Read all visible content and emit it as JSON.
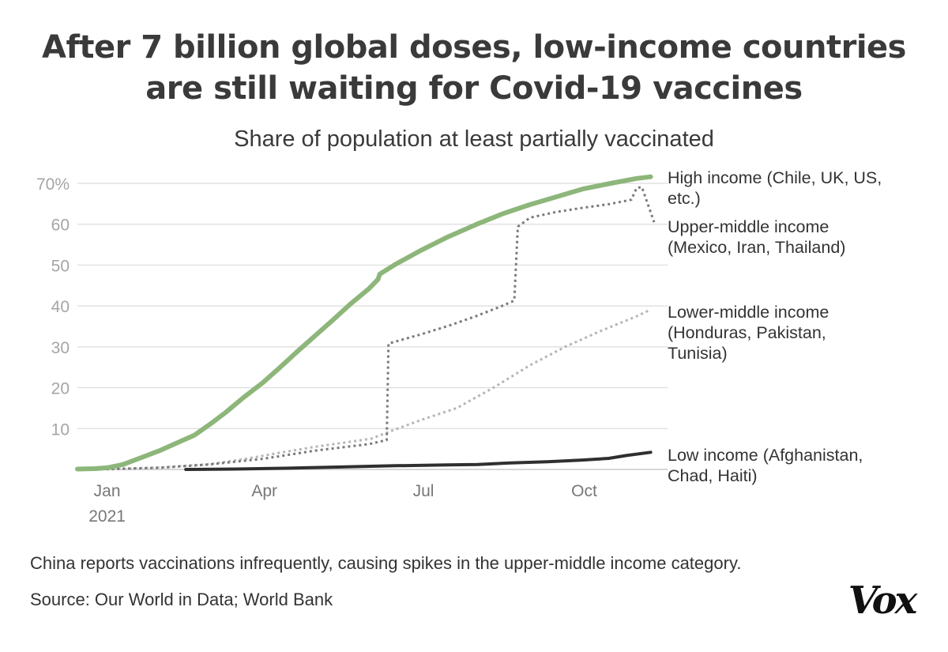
{
  "header": {
    "title_line1": "After 7 billion global doses, low-income countries",
    "title_line2": "are still waiting for Covid-19 vaccines",
    "subtitle": "Share of population at least partially vaccinated"
  },
  "footer": {
    "note": "China reports vaccinations infrequently, causing spikes in the upper-middle income category.",
    "source": "Source: Our World in Data; World Bank",
    "logo": "Vox"
  },
  "chart_data": {
    "type": "line",
    "title": "Share of population at least partially vaccinated",
    "xlabel": "",
    "ylabel": "",
    "x_range": [
      "2020-12-15",
      "2021-11-10"
    ],
    "ylim": [
      0,
      70
    ],
    "y_ticks": [
      {
        "value": 10,
        "label": "10"
      },
      {
        "value": 20,
        "label": "20"
      },
      {
        "value": 30,
        "label": "30"
      },
      {
        "value": 40,
        "label": "40"
      },
      {
        "value": 50,
        "label": "50"
      },
      {
        "value": 60,
        "label": "60"
      },
      {
        "value": 70,
        "label": "70%"
      }
    ],
    "x_ticks": [
      {
        "date": "2021-01-01",
        "label": "Jan",
        "sublabel": "2021"
      },
      {
        "date": "2021-04-01",
        "label": "Apr",
        "sublabel": ""
      },
      {
        "date": "2021-07-01",
        "label": "Jul",
        "sublabel": ""
      },
      {
        "date": "2021-10-01",
        "label": "Oct",
        "sublabel": ""
      }
    ],
    "grid": true,
    "legend": "direct labels at right end of lines",
    "series": [
      {
        "name": "High income (Chile, UK, US, etc.)",
        "label_lines": [
          "High income (Chile, UK, US,",
          "etc.)"
        ],
        "color": "#8db67a",
        "style": "solid",
        "points": [
          [
            "2020-12-15",
            0.1
          ],
          [
            "2020-12-25",
            0.2
          ],
          [
            "2021-01-01",
            0.4
          ],
          [
            "2021-01-10",
            1.2
          ],
          [
            "2021-01-20",
            2.8
          ],
          [
            "2021-01-31",
            4.6
          ],
          [
            "2021-02-10",
            6.5
          ],
          [
            "2021-02-20",
            8.4
          ],
          [
            "2021-03-01",
            11.1
          ],
          [
            "2021-03-10",
            14.0
          ],
          [
            "2021-03-20",
            17.6
          ],
          [
            "2021-03-31",
            21.2
          ],
          [
            "2021-04-10",
            25.0
          ],
          [
            "2021-04-20",
            28.9
          ],
          [
            "2021-04-30",
            32.7
          ],
          [
            "2021-05-10",
            36.5
          ],
          [
            "2021-05-20",
            40.4
          ],
          [
            "2021-05-31",
            44.3
          ],
          [
            "2021-06-05",
            46.5
          ],
          [
            "2021-06-06",
            47.8
          ],
          [
            "2021-06-15",
            50.2
          ],
          [
            "2021-06-30",
            53.7
          ],
          [
            "2021-07-15",
            56.9
          ],
          [
            "2021-07-31",
            59.9
          ],
          [
            "2021-08-15",
            62.5
          ],
          [
            "2021-08-31",
            64.8
          ],
          [
            "2021-09-15",
            66.7
          ],
          [
            "2021-09-30",
            68.6
          ],
          [
            "2021-10-15",
            69.9
          ],
          [
            "2021-10-31",
            71.2
          ],
          [
            "2021-11-08",
            71.6
          ]
        ]
      },
      {
        "name": "Upper-middle income (Mexico, Iran, Thailand)",
        "label_lines": [
          "Upper-middle income",
          "(Mexico, Iran, Thailand)"
        ],
        "color": "#7a7a7a",
        "style": "dotted",
        "points": [
          [
            "2020-12-25",
            0.0
          ],
          [
            "2021-01-31",
            0.4
          ],
          [
            "2021-02-28",
            1.2
          ],
          [
            "2021-03-31",
            2.6
          ],
          [
            "2021-04-30",
            4.6
          ],
          [
            "2021-05-31",
            6.2
          ],
          [
            "2021-06-10",
            7.2
          ],
          [
            "2021-06-11",
            30.8
          ],
          [
            "2021-06-30",
            33.1
          ],
          [
            "2021-07-15",
            35.1
          ],
          [
            "2021-07-31",
            37.5
          ],
          [
            "2021-08-15",
            40.0
          ],
          [
            "2021-08-22",
            41.3
          ],
          [
            "2021-08-24",
            59.4
          ],
          [
            "2021-08-31",
            61.6
          ],
          [
            "2021-09-15",
            63.0
          ],
          [
            "2021-09-30",
            64.0
          ],
          [
            "2021-10-15",
            64.9
          ],
          [
            "2021-10-28",
            66.0
          ],
          [
            "2021-10-31",
            68.9
          ],
          [
            "2021-11-03",
            69.1
          ],
          [
            "2021-11-10",
            60.5
          ]
        ]
      },
      {
        "name": "Lower-middle income (Honduras, Pakistan, Tunisia)",
        "label_lines": [
          "Lower-middle income",
          "(Honduras, Pakistan,",
          "Tunisia)"
        ],
        "color": "#b5b5b5",
        "style": "dotted",
        "points": [
          [
            "2021-01-01",
            0.0
          ],
          [
            "2021-02-01",
            0.5
          ],
          [
            "2021-03-01",
            1.3
          ],
          [
            "2021-03-20",
            2.5
          ],
          [
            "2021-04-10",
            4.1
          ],
          [
            "2021-05-01",
            5.6
          ],
          [
            "2021-06-01",
            7.5
          ],
          [
            "2021-06-15",
            9.8
          ],
          [
            "2021-07-01",
            12.3
          ],
          [
            "2021-07-20",
            15.0
          ],
          [
            "2021-08-10",
            20.0
          ],
          [
            "2021-08-31",
            25.5
          ],
          [
            "2021-09-20",
            30.0
          ],
          [
            "2021-10-10",
            33.8
          ],
          [
            "2021-10-31",
            37.5
          ],
          [
            "2021-11-08",
            39.1
          ]
        ]
      },
      {
        "name": "Low income (Afghanistan, Chad, Haiti)",
        "label_lines": [
          "Low income (Afghanistan,",
          "Chad, Haiti)"
        ],
        "color": "#2f2f2f",
        "style": "solid",
        "points": [
          [
            "2021-02-15",
            0.0
          ],
          [
            "2021-03-15",
            0.1
          ],
          [
            "2021-04-15",
            0.3
          ],
          [
            "2021-05-15",
            0.6
          ],
          [
            "2021-06-15",
            0.9
          ],
          [
            "2021-07-15",
            1.1
          ],
          [
            "2021-08-01",
            1.2
          ],
          [
            "2021-08-20",
            1.6
          ],
          [
            "2021-09-10",
            1.9
          ],
          [
            "2021-09-30",
            2.3
          ],
          [
            "2021-10-15",
            2.7
          ],
          [
            "2021-10-25",
            3.4
          ],
          [
            "2021-11-08",
            4.2
          ]
        ]
      }
    ]
  }
}
